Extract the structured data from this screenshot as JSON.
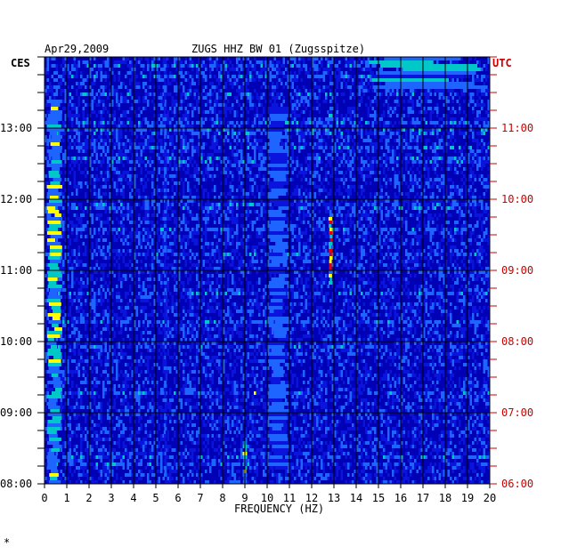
{
  "chart_data": {
    "type": "heatmap",
    "date": "Apr29,2009",
    "title": "ZUGS HHZ BW 01 (Zugsspitze)",
    "xlabel": "FREQUENCY (HZ)",
    "left_axis_label": "CES",
    "right_axis_label": "UTC",
    "xlim": [
      0,
      20
    ],
    "x_ticks": [
      "0",
      "1",
      "2",
      "3",
      "4",
      "5",
      "6",
      "7",
      "8",
      "9",
      "10",
      "11",
      "12",
      "13",
      "14",
      "15",
      "16",
      "17",
      "18",
      "19",
      "20"
    ],
    "time_range_ces_hours": [
      8,
      14
    ],
    "left_ticks": [
      {
        "hour": 13,
        "label": "13:00"
      },
      {
        "hour": 12,
        "label": "12:00"
      },
      {
        "hour": 11,
        "label": "11:00"
      },
      {
        "hour": 10,
        "label": "10:00"
      },
      {
        "hour": 9,
        "label": "09:00"
      },
      {
        "hour": 8,
        "label": "08:00"
      }
    ],
    "right_ticks": [
      {
        "hour": 13,
        "label": "11:00"
      },
      {
        "hour": 12,
        "label": "10:00"
      },
      {
        "hour": 11,
        "label": "09:00"
      },
      {
        "hour": 10,
        "label": "08:00"
      },
      {
        "hour": 9,
        "label": "07:00"
      },
      {
        "hour": 8,
        "label": "06:00"
      }
    ],
    "colors": {
      "background": "#0000b4",
      "low": "#0a14dc",
      "mid": "#00c8c8",
      "high": "#ffff00",
      "peak": "#e60000",
      "grid": "#000000",
      "right_axis": "#cc0000",
      "left_axis": "#000000"
    },
    "features": [
      {
        "name": "low-frequency band",
        "freq_hz": [
          0.1,
          0.8
        ],
        "ces_hours": [
          8.0,
          13.4
        ],
        "intensity": 0.85
      },
      {
        "name": "line 5.4 Hz",
        "freq_hz": [
          5.35,
          5.5
        ],
        "ces_hours": [
          8.1,
          14.0
        ],
        "intensity": 0.55
      },
      {
        "name": "line 9 Hz",
        "freq_hz": [
          8.9,
          9.1
        ],
        "ces_hours": [
          8.0,
          8.6
        ],
        "intensity": 0.8
      },
      {
        "name": "band 10-11 Hz",
        "freq_hz": [
          10.0,
          11.0
        ],
        "ces_hours": [
          8.2,
          13.3
        ],
        "intensity": 0.6
      },
      {
        "name": "event 12.9 Hz",
        "freq_hz": [
          12.75,
          12.95
        ],
        "ces_hours": [
          10.8,
          11.75
        ],
        "intensity": 1.0
      },
      {
        "name": "event 12.9 Hz early",
        "freq_hz": [
          12.75,
          12.95
        ],
        "ces_hours": [
          13.0,
          13.25
        ],
        "intensity": 0.7
      },
      {
        "name": "high-frequency burst",
        "freq_hz": [
          14.5,
          20.0
        ],
        "ces_hours": [
          13.55,
          14.0
        ],
        "intensity": 0.7
      }
    ]
  }
}
